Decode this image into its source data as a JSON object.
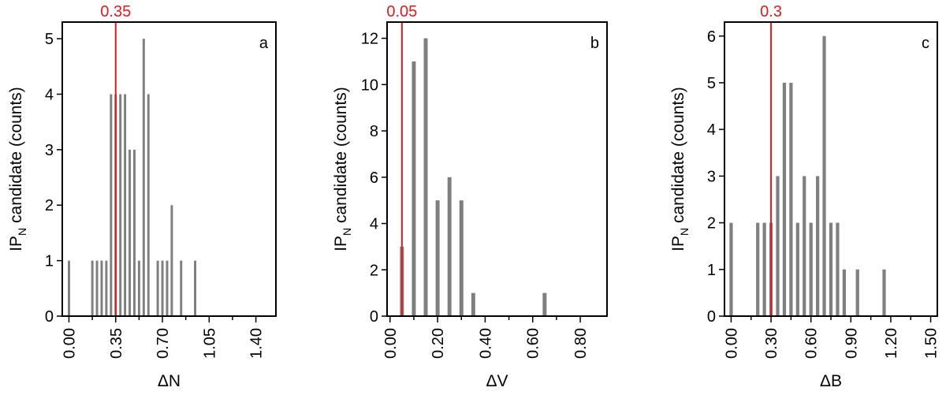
{
  "chart_data": [
    {
      "type": "bar",
      "panel_label": "a",
      "xlabel": "ΔN",
      "ylabel": "IP",
      "ylabel_subscript": "N",
      "ylabel_suffix": " candidate (counts)",
      "xlim": [
        -0.05,
        1.55
      ],
      "ylim": [
        0,
        5.3
      ],
      "xticks": [
        "0.00",
        "0.35",
        "0.70",
        "1.05",
        "1.40"
      ],
      "xtick_values": [
        0.0,
        0.35,
        0.7,
        1.05,
        1.4
      ],
      "yticks": [
        "0",
        "1",
        "2",
        "3",
        "4",
        "5"
      ],
      "ytick_values": [
        0,
        1,
        2,
        3,
        4,
        5
      ],
      "bar_width": 0.0175,
      "bars": {
        "x": [
          0.0,
          0.175,
          0.21,
          0.245,
          0.28,
          0.315,
          0.35,
          0.385,
          0.42,
          0.455,
          0.49,
          0.525,
          0.56,
          0.595,
          0.63,
          0.665,
          0.7,
          0.735,
          0.77,
          0.805,
          0.84,
          0.875,
          0.91,
          0.945,
          0.98,
          1.015,
          1.05,
          1.085,
          1.12,
          1.155,
          1.19,
          1.225,
          1.26,
          1.295,
          1.33,
          1.365,
          1.4
        ],
        "values": [
          1,
          1,
          1,
          1,
          1,
          4,
          4,
          4,
          4,
          3,
          3,
          1,
          5,
          4,
          0,
          1,
          1,
          1,
          2,
          0,
          1,
          0,
          0,
          1,
          0,
          0,
          0,
          0,
          0,
          0,
          0,
          0,
          0,
          0,
          0,
          0,
          0
        ]
      },
      "threshold": {
        "x": 0.35,
        "label": "0.35",
        "color": "#e31a1c"
      }
    },
    {
      "type": "bar",
      "panel_label": "b",
      "xlabel": "ΔV",
      "ylabel": "IP",
      "ylabel_subscript": "N",
      "ylabel_suffix": " candidate (counts)",
      "xlim": [
        -0.0125,
        0.9125
      ],
      "ylim": [
        0,
        12.7
      ],
      "xticks": [
        "0.00",
        "0.20",
        "0.40",
        "0.60",
        "0.80"
      ],
      "xtick_values": [
        0.0,
        0.2,
        0.4,
        0.6,
        0.8
      ],
      "yticks": [
        "0",
        "2",
        "4",
        "6",
        "8",
        "10",
        "12"
      ],
      "ytick_values": [
        0,
        2,
        4,
        6,
        8,
        10,
        12
      ],
      "bar_width": 0.0165,
      "bars": {
        "x": [
          0.05,
          0.1,
          0.15,
          0.2,
          0.25,
          0.3,
          0.35,
          0.65
        ],
        "values": [
          3,
          11,
          12,
          5,
          6,
          5,
          1,
          1
        ]
      },
      "threshold": {
        "x": 0.05,
        "label": "0.05",
        "color": "#e31a1c"
      }
    },
    {
      "type": "bar",
      "panel_label": "c",
      "xlabel": "ΔB",
      "ylabel": "IP",
      "ylabel_subscript": "N",
      "ylabel_suffix": " candidate (counts)",
      "xlim": [
        -0.05,
        1.55
      ],
      "ylim": [
        0,
        6.3
      ],
      "xticks": [
        "0.00",
        "0.30",
        "0.60",
        "0.90",
        "1.20",
        "1.50"
      ],
      "xtick_values": [
        0.0,
        0.3,
        0.6,
        0.9,
        1.2,
        1.5
      ],
      "yticks": [
        "0",
        "1",
        "2",
        "3",
        "4",
        "5",
        "6"
      ],
      "ytick_values": [
        0,
        1,
        2,
        3,
        4,
        5,
        6
      ],
      "bar_width": 0.025,
      "bars": {
        "x": [
          0.0,
          0.2,
          0.25,
          0.3,
          0.35,
          0.4,
          0.45,
          0.5,
          0.55,
          0.6,
          0.65,
          0.7,
          0.75,
          0.8,
          0.85,
          0.95,
          1.15
        ],
        "values": [
          2,
          2,
          2,
          2,
          3,
          5,
          5,
          2,
          3,
          2,
          3,
          6,
          2,
          2,
          1,
          1,
          1
        ]
      },
      "threshold": {
        "x": 0.3,
        "label": "0.3",
        "color": "#e31a1c"
      }
    }
  ],
  "colors": {
    "bar": "#7f7f7f",
    "axis": "#000000",
    "threshold": "#e31a1c"
  }
}
